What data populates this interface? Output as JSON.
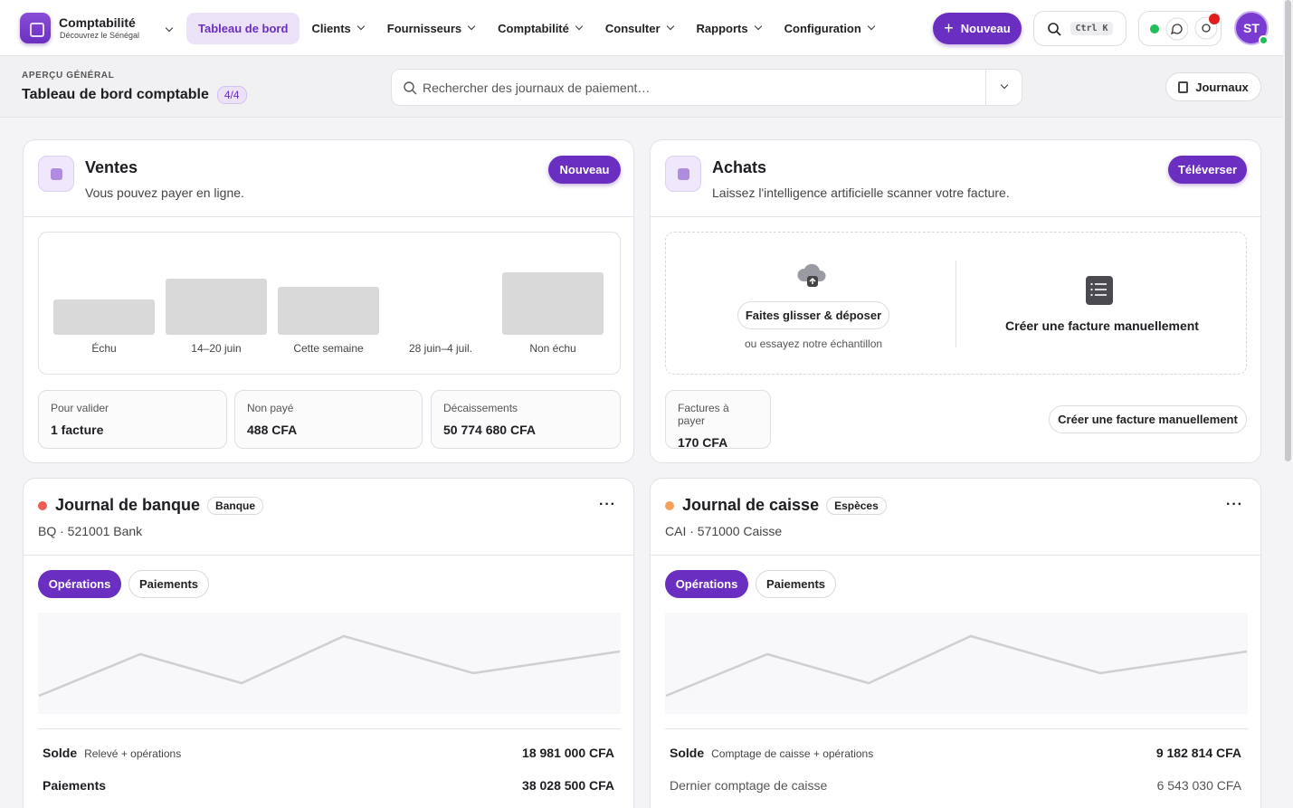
{
  "navbar": {
    "app_name": "Comptabilité",
    "app_subtitle": "Découvrez le Sénégal",
    "menu": [
      "Tableau de bord",
      "Clients",
      "Fournisseurs",
      "Comptabilité",
      "Consulter",
      "Rapports",
      "Configuration"
    ],
    "new_button": "Nouveau",
    "shortcut": "Ctrl K",
    "avatar": "ST"
  },
  "header": {
    "eyebrow": "APERÇU GÉNÉRAL",
    "title": "Tableau de bord comptable",
    "badge": "4/4",
    "search_placeholder": "Rechercher des journaux de paiement…",
    "journals_button": "Journaux"
  },
  "sales": {
    "title": "Ventes",
    "subtitle": "Vous pouvez payer en ligne.",
    "button": "Nouveau",
    "buckets": [
      "Échu",
      "14–20 juin",
      "Cette semaine",
      "28 juin–4 juil.",
      "Non échu"
    ],
    "stats": [
      {
        "label": "Pour valider",
        "value": "1 facture"
      },
      {
        "label": "Non payé",
        "value": "488 CFA"
      },
      {
        "label": "Décaissements",
        "value": "50 774 680 CFA"
      }
    ]
  },
  "purchases": {
    "title": "Achats",
    "subtitle": "Laissez l'intelligence artificielle scanner votre facture.",
    "button": "Téléverser",
    "upload_button": "Faites glisser & déposer",
    "upload_hint": "ou essayez notre échantillon",
    "manual_title": "Créer une facture manuellement",
    "stats": [
      {
        "label": "Factures à payer",
        "value": "170 CFA"
      }
    ],
    "manual_button": "Créer une facture manuellement"
  },
  "journals": [
    {
      "title": "Journal de banque",
      "tag": "Banque",
      "code": "BQ · 521001 Bank",
      "tabs": [
        "Opérations",
        "Paiements"
      ],
      "rows": [
        {
          "label": "Solde",
          "note": "Relevé + opérations",
          "value": "18 981 000 CFA"
        },
        {
          "label": "Paiements",
          "value": "38 028 500 CFA"
        }
      ]
    },
    {
      "title": "Journal de caisse",
      "tag": "Espèces",
      "code": "CAI · 571000 Caisse",
      "tabs": [
        "Opérations",
        "Paiements"
      ],
      "rows": [
        {
          "label": "Solde",
          "note": "Comptage de caisse + opérations",
          "value": "9 182 814 CFA"
        },
        {
          "label": "Dernier comptage de caisse",
          "value": "6 543 030 CFA"
        }
      ]
    }
  ]
}
